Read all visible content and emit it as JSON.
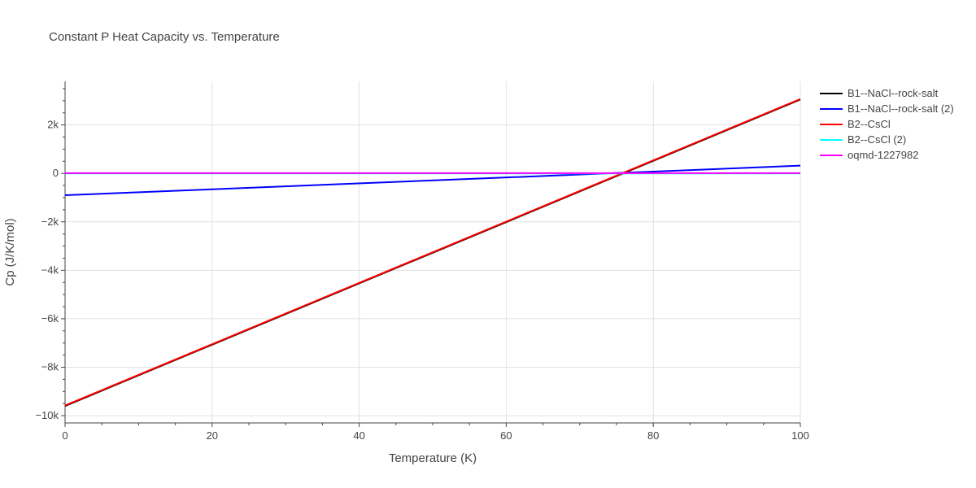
{
  "chart_data": {
    "type": "line",
    "title": "Constant P Heat Capacity vs. Temperature",
    "xlabel": "Temperature (K)",
    "ylabel": "Cp (J/K/mol)",
    "xlim": [
      0,
      100
    ],
    "ylim": [
      -10300,
      3800
    ],
    "x_ticks": [
      0,
      20,
      40,
      60,
      80,
      100
    ],
    "x_tick_labels": [
      "0",
      "20",
      "40",
      "60",
      "80",
      "100"
    ],
    "y_ticks": [
      -10000,
      -8000,
      -6000,
      -4000,
      -2000,
      0,
      2000
    ],
    "y_tick_labels": [
      "−10k",
      "−8k",
      "−6k",
      "−4k",
      "−2k",
      "0",
      "2k"
    ],
    "grid": true,
    "legend_position": "top-right, outside plot",
    "series": [
      {
        "name": "B1--NaCl--rock-salt",
        "color": "#000000",
        "x": [
          0,
          100
        ],
        "y": [
          -9600,
          3050
        ]
      },
      {
        "name": "B1--NaCl--rock-salt (2)",
        "color": "#0000ff",
        "x": [
          0,
          100
        ],
        "y": [
          -900,
          320
        ]
      },
      {
        "name": "B2--CsCl",
        "color": "#ff0000",
        "x": [
          0,
          100
        ],
        "y": [
          -9580,
          3070
        ]
      },
      {
        "name": "B2--CsCl (2)",
        "color": "#00ffff",
        "x": [
          0,
          100
        ],
        "y": [
          0,
          0
        ]
      },
      {
        "name": "oqmd-1227982",
        "color": "#ff00ff",
        "x": [
          0,
          100
        ],
        "y": [
          10,
          10
        ]
      }
    ]
  }
}
